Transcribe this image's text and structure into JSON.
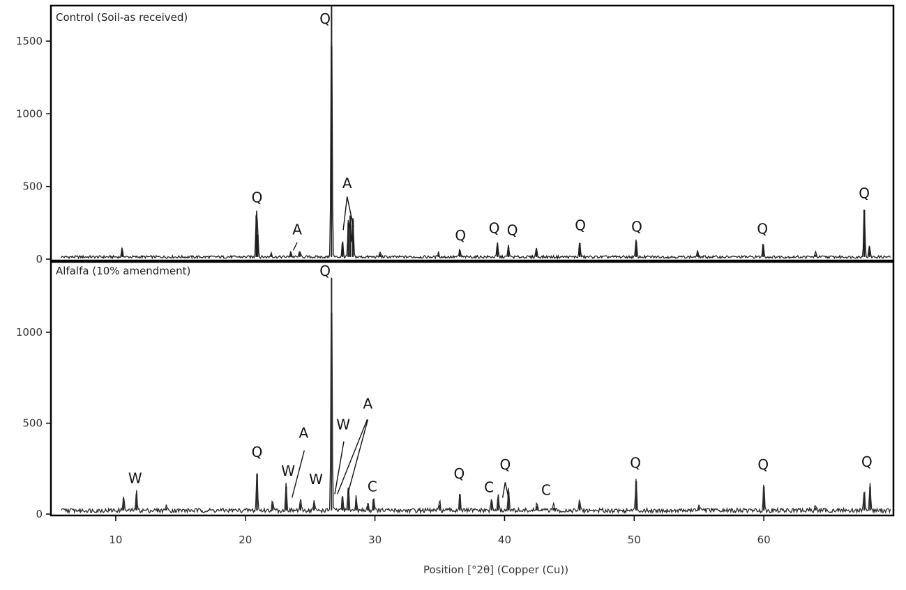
{
  "chart_data": {
    "type": "line",
    "xlabel": "Position [°2θ] (Copper (Cu))",
    "xlim": [
      5,
      70
    ],
    "x_ticks": [
      10,
      20,
      30,
      40,
      50,
      60
    ],
    "grid": false,
    "colors": {
      "control": "#1e1e1e",
      "alfalfa": "#2a2a2a",
      "axis": "#000000"
    },
    "panels": [
      {
        "id": "control",
        "title": "Control (Soil-as received)",
        "ylim": [
          0,
          1500
        ],
        "y_ticks": [
          0,
          500,
          1000,
          1500
        ],
        "baseline": 15,
        "peaks": [
          {
            "x": 10.5,
            "y": 60
          },
          {
            "x": 20.85,
            "y": 300
          },
          {
            "x": 20.95,
            "y": 170
          },
          {
            "x": 22.0,
            "y": 30
          },
          {
            "x": 23.5,
            "y": 40
          },
          {
            "x": 24.2,
            "y": 45
          },
          {
            "x": 26.65,
            "y": 1750
          },
          {
            "x": 27.5,
            "y": 110
          },
          {
            "x": 27.95,
            "y": 250
          },
          {
            "x": 28.1,
            "y": 300
          },
          {
            "x": 28.3,
            "y": 270
          },
          {
            "x": 30.4,
            "y": 35
          },
          {
            "x": 34.9,
            "y": 30
          },
          {
            "x": 36.55,
            "y": 55
          },
          {
            "x": 39.45,
            "y": 100
          },
          {
            "x": 40.3,
            "y": 80
          },
          {
            "x": 42.45,
            "y": 65
          },
          {
            "x": 45.8,
            "y": 110
          },
          {
            "x": 50.15,
            "y": 120
          },
          {
            "x": 54.9,
            "y": 40
          },
          {
            "x": 59.95,
            "y": 100
          },
          {
            "x": 64.0,
            "y": 30
          },
          {
            "x": 67.75,
            "y": 340
          },
          {
            "x": 68.15,
            "y": 80
          }
        ],
        "labels": [
          {
            "text": "Q",
            "x": 26.15,
            "y": 1620
          },
          {
            "text": "Q",
            "x": 20.9,
            "y": 390
          },
          {
            "text": "A",
            "x": 24.0,
            "y": 170
          },
          {
            "text": "A",
            "x": 27.85,
            "y": 490
          },
          {
            "text": "Q",
            "x": 36.6,
            "y": 130
          },
          {
            "text": "Q",
            "x": 39.2,
            "y": 180
          },
          {
            "text": "Q",
            "x": 40.6,
            "y": 165
          },
          {
            "text": "Q",
            "x": 45.85,
            "y": 200
          },
          {
            "text": "Q",
            "x": 50.2,
            "y": 190
          },
          {
            "text": "Q",
            "x": 59.9,
            "y": 175
          },
          {
            "text": "Q",
            "x": 67.75,
            "y": 420
          }
        ]
      },
      {
        "id": "alfalfa",
        "title": "Alfalfa (10% amendment)",
        "ylim": [
          0,
          1000
        ],
        "y_ticks": [
          0,
          500,
          1000
        ],
        "baseline": 20,
        "peaks": [
          {
            "x": 10.6,
            "y": 85
          },
          {
            "x": 11.6,
            "y": 110
          },
          {
            "x": 13.9,
            "y": 35
          },
          {
            "x": 20.9,
            "y": 220
          },
          {
            "x": 22.1,
            "y": 60
          },
          {
            "x": 23.15,
            "y": 150
          },
          {
            "x": 24.25,
            "y": 60
          },
          {
            "x": 25.3,
            "y": 55
          },
          {
            "x": 26.65,
            "y": 1300
          },
          {
            "x": 27.5,
            "y": 85
          },
          {
            "x": 27.95,
            "y": 140
          },
          {
            "x": 28.55,
            "y": 75
          },
          {
            "x": 29.45,
            "y": 45
          },
          {
            "x": 29.9,
            "y": 80
          },
          {
            "x": 35.0,
            "y": 50
          },
          {
            "x": 36.55,
            "y": 110
          },
          {
            "x": 39.0,
            "y": 70
          },
          {
            "x": 39.5,
            "y": 85
          },
          {
            "x": 40.3,
            "y": 120
          },
          {
            "x": 42.5,
            "y": 45
          },
          {
            "x": 43.8,
            "y": 35
          },
          {
            "x": 45.8,
            "y": 60
          },
          {
            "x": 50.15,
            "y": 180
          },
          {
            "x": 55.0,
            "y": 40
          },
          {
            "x": 60.0,
            "y": 150
          },
          {
            "x": 64.0,
            "y": 35
          },
          {
            "x": 67.75,
            "y": 120
          },
          {
            "x": 68.2,
            "y": 150
          }
        ],
        "labels": [
          {
            "text": "Q",
            "x": 26.15,
            "y": 1310
          },
          {
            "text": "W",
            "x": 11.5,
            "y": 170
          },
          {
            "text": "Q",
            "x": 20.9,
            "y": 315
          },
          {
            "text": "W",
            "x": 23.3,
            "y": 210
          },
          {
            "text": "A",
            "x": 24.5,
            "y": 420
          },
          {
            "text": "W",
            "x": 25.45,
            "y": 165
          },
          {
            "text": "W",
            "x": 27.55,
            "y": 465
          },
          {
            "text": "A",
            "x": 29.45,
            "y": 580
          },
          {
            "text": "C",
            "x": 29.8,
            "y": 125
          },
          {
            "text": "Q",
            "x": 36.5,
            "y": 195
          },
          {
            "text": "C",
            "x": 38.8,
            "y": 120
          },
          {
            "text": "Q",
            "x": 40.05,
            "y": 245
          },
          {
            "text": "C",
            "x": 43.2,
            "y": 105
          },
          {
            "text": "Q",
            "x": 50.1,
            "y": 255
          },
          {
            "text": "Q",
            "x": 59.95,
            "y": 245
          },
          {
            "text": "Q",
            "x": 67.95,
            "y": 260
          }
        ]
      }
    ]
  }
}
